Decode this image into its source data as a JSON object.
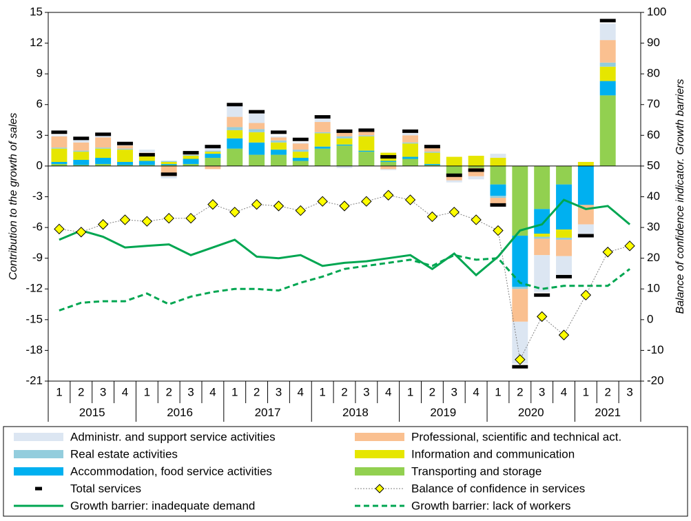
{
  "chart_data": {
    "type": "stacked-bar-line",
    "y_label": "Contribution to the growth of sales",
    "y2_label": "Balance of confidence indicator. Growth barriers",
    "categories": [
      "1",
      "2",
      "3",
      "4",
      "1",
      "2",
      "3",
      "4",
      "1",
      "2",
      "3",
      "4",
      "1",
      "2",
      "3",
      "4",
      "1",
      "2",
      "3",
      "4",
      "1",
      "2",
      "3",
      "4",
      "1",
      "2",
      "3"
    ],
    "x_groups": [
      {
        "label": "2015",
        "count": 4
      },
      {
        "label": "2016",
        "count": 4
      },
      {
        "label": "2017",
        "count": 4
      },
      {
        "label": "2018",
        "count": 4
      },
      {
        "label": "2019",
        "count": 4
      },
      {
        "label": "2020",
        "count": 4
      },
      {
        "label": "2021",
        "count": 3
      }
    ],
    "ylim": [
      -21,
      15
    ],
    "yticks": [
      -21,
      -18,
      -15,
      -12,
      -9,
      -6,
      -3,
      0,
      3,
      6,
      9,
      12,
      15
    ],
    "y2lim": [
      -20,
      100
    ],
    "y2ticks": [
      -20,
      -10,
      0,
      10,
      20,
      30,
      40,
      50,
      60,
      70,
      80,
      90,
      100
    ],
    "series": [
      {
        "name": "Administr. and support service activities",
        "kind": "bar",
        "color": "#dce6f2",
        "values": [
          0.1,
          0.3,
          0.3,
          0.1,
          0.3,
          -0.2,
          0.2,
          0.3,
          1.1,
          0.9,
          0.1,
          0.1,
          0.3,
          -0.2,
          0.1,
          -0.1,
          0.2,
          0.1,
          -0.2,
          -0.3,
          0.4,
          -4.1,
          -3.6,
          -1.8,
          -0.9,
          1.6,
          null
        ]
      },
      {
        "name": "Professional, scientific and technical act.",
        "kind": "bar",
        "color": "#fac090",
        "values": [
          1.1,
          0.8,
          1.0,
          0.3,
          0.2,
          -1.0,
          0.1,
          -0.3,
          1.0,
          0.6,
          0.3,
          0.6,
          1.0,
          0.5,
          0.4,
          -0.3,
          0.7,
          0.4,
          -0.6,
          -0.8,
          -0.6,
          -3.2,
          -1.6,
          -1.6,
          -1.9,
          2.2,
          null
        ]
      },
      {
        "name": "Real estate activities",
        "kind": "bar",
        "color": "#93cddd",
        "values": [
          0.1,
          0.1,
          0.1,
          0.1,
          0.1,
          0.1,
          0.1,
          0.1,
          0.3,
          0.3,
          0.2,
          0.2,
          0.1,
          0.2,
          0.1,
          0.0,
          0.1,
          0.1,
          0.0,
          0.0,
          -0.2,
          -0.2,
          -0.2,
          -0.2,
          0.0,
          0.4,
          null
        ]
      },
      {
        "name": "Information and communication",
        "kind": "bar",
        "color": "#e6e600",
        "values": [
          1.3,
          0.8,
          0.9,
          1.2,
          0.5,
          0.2,
          0.3,
          0.2,
          0.8,
          1.0,
          0.7,
          0.6,
          1.3,
          0.6,
          1.4,
          0.8,
          1.3,
          1.1,
          0.9,
          1.0,
          0.8,
          0.0,
          -0.3,
          -0.8,
          0.4,
          1.4,
          null
        ]
      },
      {
        "name": "Accommodation, food service activities",
        "kind": "bar",
        "color": "#00b0f0",
        "values": [
          0.2,
          0.5,
          0.6,
          0.3,
          0.4,
          0.1,
          0.5,
          0.4,
          1.0,
          1.2,
          0.5,
          0.3,
          0.2,
          0.1,
          0.1,
          0.1,
          0.2,
          0.1,
          0.0,
          0.0,
          -1.1,
          -5.0,
          -2.4,
          -4.4,
          -3.8,
          1.4,
          null
        ]
      },
      {
        "name": "Transporting and storage",
        "kind": "bar",
        "color": "#92d050",
        "values": [
          0.2,
          0.1,
          0.2,
          0.1,
          0.1,
          0.1,
          0.2,
          0.8,
          1.7,
          1.1,
          1.1,
          0.5,
          1.7,
          2.0,
          1.4,
          0.4,
          0.7,
          0.1,
          -0.8,
          -0.2,
          -1.8,
          -6.8,
          -4.2,
          -1.8,
          0.0,
          6.9,
          null
        ]
      },
      {
        "name": "Total services",
        "kind": "dash",
        "color": "#000000",
        "values": [
          3.3,
          2.7,
          3.1,
          2.2,
          1.1,
          -0.8,
          1.3,
          1.9,
          6.0,
          5.3,
          3.3,
          2.6,
          4.8,
          3.4,
          3.5,
          0.9,
          3.4,
          1.9,
          -0.9,
          -0.4,
          -3.8,
          -19.6,
          -12.6,
          -10.8,
          -6.8,
          14.2,
          null
        ]
      },
      {
        "name": "Balance of confidence in services",
        "kind": "marker-line",
        "axis": "y2",
        "color": "#ffff00",
        "line_color": "#808080",
        "style": "dotted",
        "values": [
          29.5,
          28.5,
          31,
          32.5,
          32,
          33,
          33,
          37.5,
          35,
          37.5,
          37,
          35.5,
          38.5,
          37,
          38.5,
          40.5,
          39,
          33.5,
          35,
          32.5,
          29,
          -13,
          1,
          -5,
          8,
          22,
          24
        ]
      },
      {
        "name": "Growth barrier: inadequate demand",
        "kind": "line",
        "axis": "y2",
        "color": "#00a651",
        "style": "solid",
        "values": [
          26,
          29,
          27,
          23.5,
          24,
          24.5,
          21,
          23.5,
          26,
          20.5,
          20,
          21,
          17.5,
          18.5,
          19,
          20,
          21,
          16.5,
          21.5,
          14.5,
          20.5,
          29,
          31,
          39,
          36,
          37,
          31
        ]
      },
      {
        "name": "Growth barrier: lack of workers",
        "kind": "line",
        "axis": "y2",
        "color": "#00a651",
        "style": "dashed",
        "values": [
          3,
          5.5,
          6,
          6,
          8.5,
          5,
          7.5,
          9,
          10,
          10,
          9.5,
          12,
          14,
          16.5,
          17.5,
          18.5,
          19.5,
          17.5,
          21,
          19.5,
          20,
          12,
          10,
          11,
          11,
          11,
          16.5
        ]
      }
    ]
  }
}
